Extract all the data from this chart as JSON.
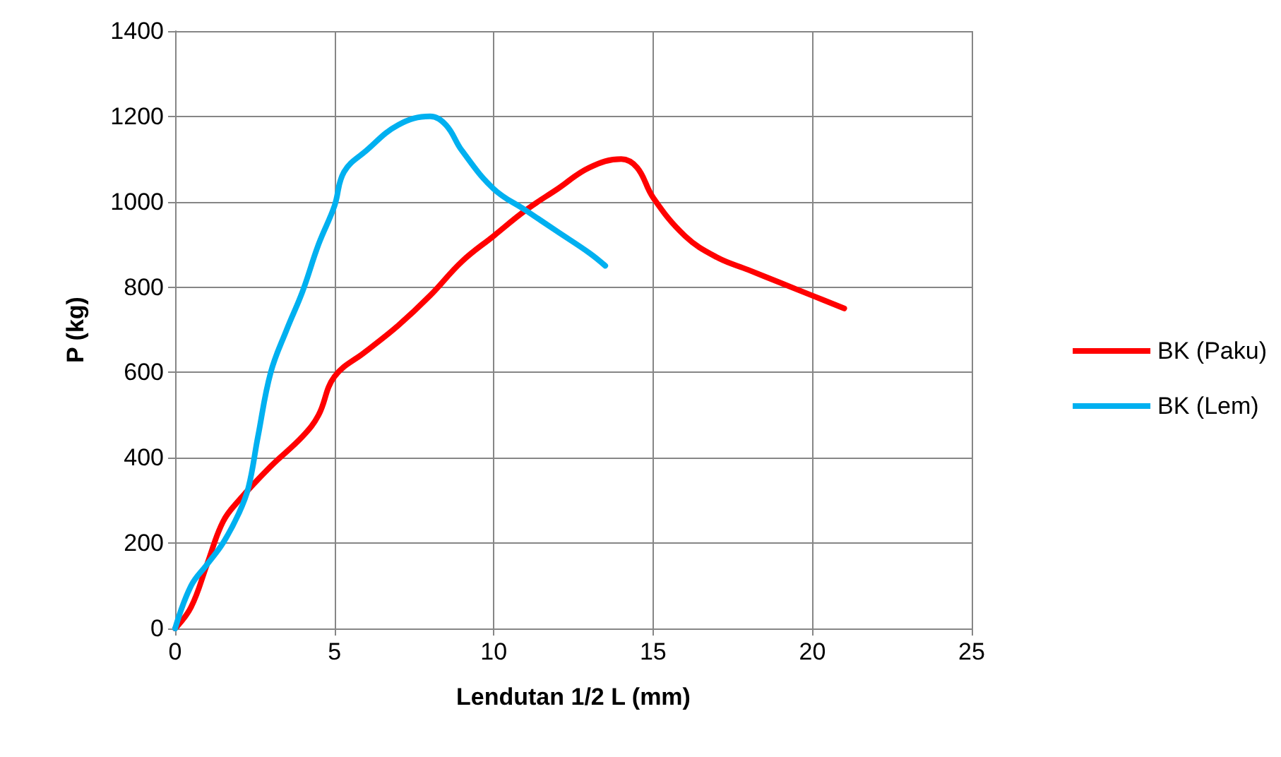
{
  "chart_data": {
    "type": "line",
    "xlabel": "Lendutan 1/2 L (mm)",
    "ylabel": "P (kg)",
    "xlim": [
      0,
      25
    ],
    "xticks": [
      0,
      5,
      10,
      15,
      20,
      25
    ],
    "ylim": [
      0,
      1400
    ],
    "yticks": [
      0,
      200,
      400,
      600,
      800,
      1000,
      1200,
      1400
    ],
    "grid": true,
    "legend": "right",
    "marker": "none",
    "line_style": "solid",
    "series": [
      {
        "name": "BK (Paku)",
        "color": "#ff0000",
        "x": [
          0,
          0.5,
          1,
          1.5,
          2,
          3,
          4,
          4.5,
          5,
          6,
          7,
          8,
          9,
          10,
          11,
          12,
          13,
          14,
          14.5,
          15,
          16,
          17,
          18,
          19,
          20,
          21
        ],
        "values": [
          0,
          50,
          150,
          250,
          300,
          380,
          450,
          500,
          590,
          650,
          710,
          780,
          860,
          920,
          980,
          1030,
          1080,
          1100,
          1080,
          1010,
          920,
          870,
          840,
          810,
          780,
          750
        ]
      },
      {
        "name": "BK (Lem)",
        "color": "#00b0f0",
        "x": [
          0,
          0.5,
          1,
          1.5,
          2,
          2.3,
          2.6,
          3,
          3.5,
          4,
          4.5,
          5,
          5.3,
          6,
          7,
          8,
          8.5,
          9,
          10,
          11,
          12,
          13,
          13.5
        ],
        "values": [
          0,
          100,
          150,
          200,
          270,
          330,
          450,
          600,
          700,
          790,
          900,
          990,
          1070,
          1120,
          1180,
          1200,
          1180,
          1120,
          1030,
          980,
          930,
          880,
          850
        ]
      }
    ]
  }
}
